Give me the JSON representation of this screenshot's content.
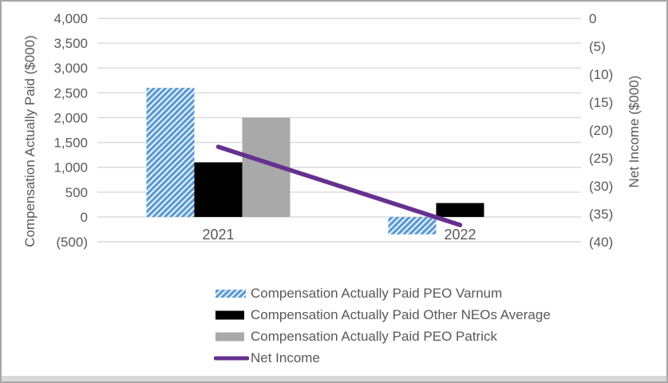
{
  "frame": {
    "background": "#FFFFFF",
    "border_color": "#A7A7A7",
    "bottom_strip_color": "#D9D9D9"
  },
  "chart_data": {
    "type": "bar",
    "subtype": "clustered bars with overlay line, dual axes",
    "title": "",
    "categories": [
      "2021",
      "2022"
    ],
    "series": [
      {
        "name": "Compensation Actually Paid PEO Varnum",
        "type": "bar",
        "axis": "left",
        "color": "#5B9BD5",
        "fill": "hatched",
        "values": [
          2600,
          -350
        ]
      },
      {
        "name": "Compensation Actually Paid Other NEOs Average",
        "type": "bar",
        "axis": "left",
        "color": "#000000",
        "fill": "solid",
        "values": [
          1100,
          280
        ]
      },
      {
        "name": "Compensation Actually Paid PEO Patrick",
        "type": "bar",
        "axis": "left",
        "color": "#A9A9A9",
        "fill": "solid",
        "values": [
          2000,
          0
        ]
      },
      {
        "name": "Net Income",
        "type": "line",
        "axis": "right",
        "color": "#66308F",
        "fill": "line",
        "values": [
          -23,
          -37
        ]
      }
    ],
    "left_axis": {
      "label": "Compensation Actually Paid ($000)",
      "min": -500,
      "max": 4000,
      "step": 500,
      "ticks": [
        "4,000",
        "3,500",
        "3,000",
        "2,500",
        "2,000",
        "1,500",
        "1,000",
        "500",
        "0",
        "(500)"
      ]
    },
    "right_axis": {
      "label": "Net Income ($000)",
      "min": -40,
      "max": 0,
      "step": 5,
      "ticks": [
        "0",
        "(5)",
        "(10)",
        "(15)",
        "(20)",
        "(25)",
        "(30)",
        "(35)",
        "(40)"
      ]
    },
    "grid": "horizontal",
    "gridline_color": "#D9D9D9",
    "text_color": "#595959",
    "legend_position": "bottom"
  }
}
